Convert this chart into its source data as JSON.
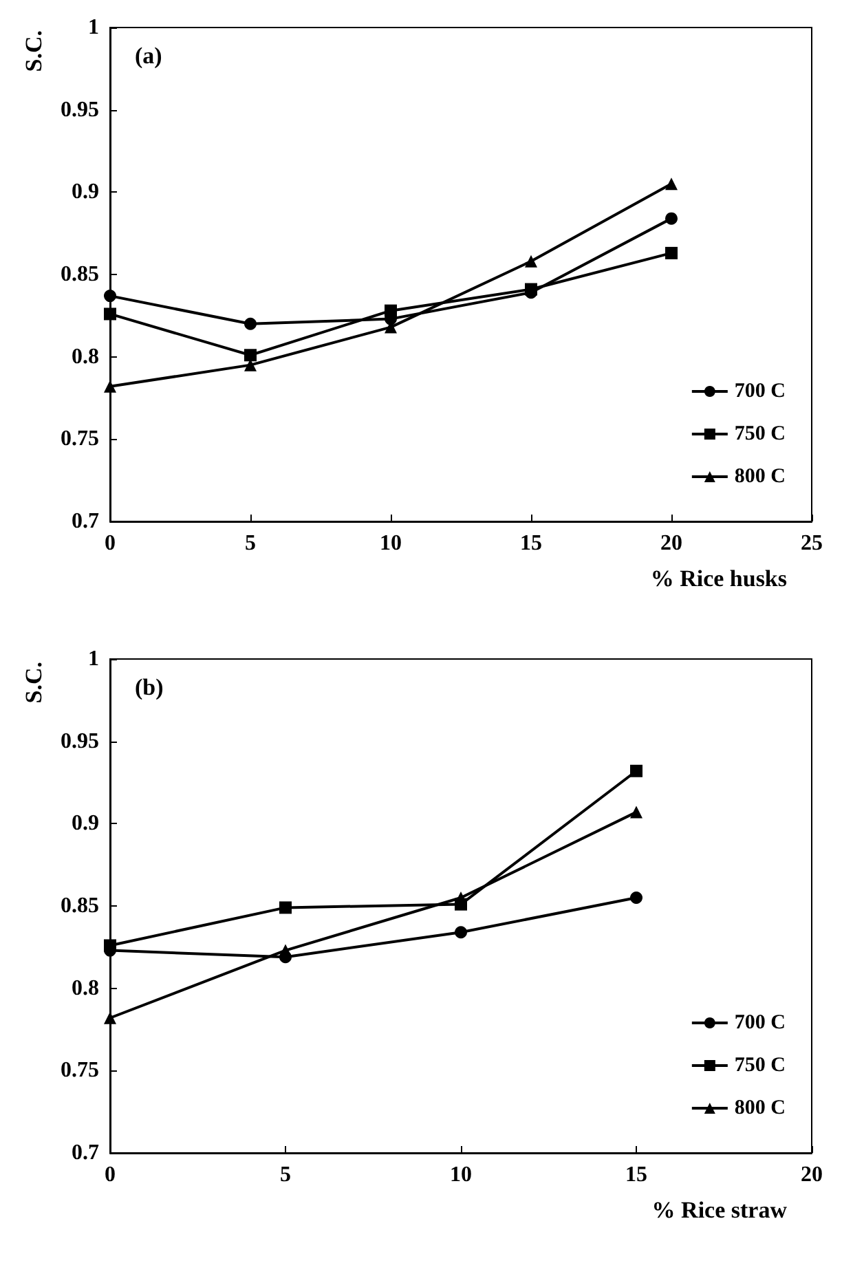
{
  "chart_data": [
    {
      "type": "line",
      "annotations": [
        "(a)"
      ],
      "xlabel": "% Rice husks",
      "ylabel": "S.C.",
      "x": [
        0,
        5,
        10,
        15,
        20
      ],
      "xlim": [
        0,
        25
      ],
      "xticks": [
        0,
        5,
        10,
        15,
        20,
        25
      ],
      "ylim": [
        0.7,
        1
      ],
      "yticks": [
        0.7,
        0.75,
        0.8,
        0.85,
        0.9,
        0.95,
        1
      ],
      "legend": "bottom right",
      "grid": false,
      "series": [
        {
          "name": "700 C",
          "color": "#000000",
          "marker": "circle",
          "values": [
            0.837,
            0.82,
            0.823,
            0.839,
            0.884
          ]
        },
        {
          "name": "750 C",
          "color": "#000000",
          "marker": "square",
          "values": [
            0.826,
            0.801,
            0.828,
            0.841,
            0.863
          ]
        },
        {
          "name": "800 C",
          "color": "#000000",
          "marker": "triangle",
          "values": [
            0.782,
            0.795,
            0.818,
            0.858,
            0.905
          ]
        }
      ]
    },
    {
      "type": "line",
      "annotations": [
        "(b)"
      ],
      "xlabel": "% Rice straw",
      "ylabel": "S.C.",
      "x": [
        0,
        5,
        10,
        15
      ],
      "xlim": [
        0,
        20
      ],
      "xticks": [
        0,
        5,
        10,
        15,
        20
      ],
      "ylim": [
        0.7,
        1
      ],
      "yticks": [
        0.7,
        0.75,
        0.8,
        0.85,
        0.9,
        0.95,
        1
      ],
      "legend": "bottom right",
      "grid": false,
      "series": [
        {
          "name": "700 C",
          "color": "#000000",
          "marker": "circle",
          "values": [
            0.823,
            0.819,
            0.834,
            0.855
          ]
        },
        {
          "name": "750 C",
          "color": "#000000",
          "marker": "square",
          "values": [
            0.826,
            0.849,
            0.851,
            0.932
          ]
        },
        {
          "name": "800 C",
          "color": "#000000",
          "marker": "triangle",
          "values": [
            0.782,
            0.823,
            0.855,
            0.907
          ]
        }
      ]
    }
  ]
}
